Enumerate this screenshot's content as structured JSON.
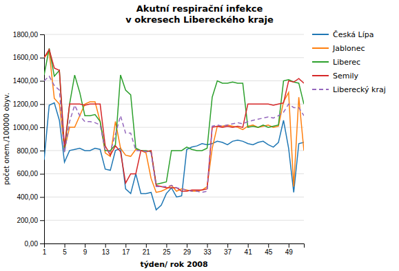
{
  "chart_data": {
    "type": "line",
    "title": "Akutní respirační infekce\nv okresech Libereckého kraje",
    "xlabel": "týden/ rok 2008",
    "ylabel": "počet onem./100000 obyv.",
    "x": [
      1,
      2,
      3,
      4,
      5,
      6,
      7,
      8,
      9,
      10,
      11,
      12,
      13,
      14,
      15,
      16,
      17,
      18,
      19,
      20,
      21,
      22,
      23,
      24,
      25,
      26,
      27,
      28,
      29,
      30,
      31,
      32,
      33,
      34,
      35,
      36,
      37,
      38,
      39,
      40,
      41,
      42,
      43,
      44,
      45,
      46,
      47,
      48,
      49,
      50,
      51,
      52
    ],
    "xlim": [
      1,
      52
    ],
    "xticks": [
      1,
      5,
      9,
      13,
      17,
      21,
      25,
      29,
      33,
      37,
      41,
      45,
      49
    ],
    "ylim": [
      0,
      1800
    ],
    "yticks": [
      {
        "value": 0,
        "label": "0,00"
      },
      {
        "value": 200,
        "label": "200,00"
      },
      {
        "value": 400,
        "label": "400,00"
      },
      {
        "value": 600,
        "label": "600,00"
      },
      {
        "value": 800,
        "label": "800,00"
      },
      {
        "value": 1000,
        "label": "1000,00"
      },
      {
        "value": 1200,
        "label": "1200,00"
      },
      {
        "value": 1400,
        "label": "1400,00"
      },
      {
        "value": 1600,
        "label": "1600,00"
      },
      {
        "value": 1800,
        "label": "1800,00"
      }
    ],
    "grid": true,
    "legend": "right",
    "series": [
      {
        "name": "Česká Lípa",
        "line_style": "solid",
        "values": [
          720,
          1190,
          1210,
          1060,
          700,
          800,
          810,
          820,
          800,
          800,
          820,
          810,
          640,
          630,
          800,
          820,
          470,
          430,
          600,
          430,
          430,
          440,
          290,
          330,
          430,
          480,
          400,
          410,
          810,
          830,
          840,
          860,
          850,
          860,
          880,
          870,
          850,
          880,
          890,
          880,
          860,
          850,
          870,
          880,
          850,
          830,
          870,
          1060,
          820,
          440,
          860,
          870
        ]
      },
      {
        "name": "Jablonec",
        "line_style": "solid",
        "values": [
          1600,
          1650,
          1250,
          1200,
          810,
          1000,
          1000,
          1100,
          1200,
          1220,
          1220,
          1050,
          780,
          750,
          1050,
          820,
          760,
          750,
          810,
          800,
          780,
          560,
          440,
          450,
          470,
          500,
          450,
          470,
          460,
          450,
          450,
          460,
          490,
          820,
          1010,
          1010,
          1020,
          1010,
          1000,
          980,
          1010,
          1020,
          1000,
          1010,
          1020,
          1000,
          1010,
          1220,
          1300,
          490,
          1260,
          800
        ]
      },
      {
        "name": "Liberec",
        "line_style": "solid",
        "values": [
          1450,
          1680,
          1440,
          1490,
          790,
          1200,
          1450,
          1300,
          1100,
          1100,
          1110,
          1050,
          800,
          800,
          850,
          1450,
          1320,
          1280,
          820,
          800,
          800,
          790,
          510,
          520,
          530,
          800,
          800,
          800,
          830,
          810,
          800,
          800,
          820,
          1260,
          1400,
          1380,
          1380,
          1390,
          1380,
          1380,
          1000,
          1010,
          1000,
          1020,
          1000,
          1010,
          1020,
          1400,
          1410,
          1390,
          1380,
          1200
        ]
      },
      {
        "name": "Semily",
        "line_style": "solid",
        "values": [
          1600,
          1670,
          1510,
          1490,
          830,
          1200,
          1200,
          1200,
          1190,
          1200,
          1200,
          1200,
          840,
          760,
          840,
          790,
          520,
          600,
          600,
          800,
          790,
          800,
          500,
          490,
          480,
          480,
          480,
          450,
          450,
          460,
          460,
          460,
          470,
          1000,
          1010,
          1000,
          1010,
          1000,
          1010,
          1000,
          1200,
          1200,
          1200,
          1200,
          1200,
          1190,
          1200,
          1210,
          1400,
          1390,
          1420,
          1380
        ]
      },
      {
        "name": "Liberecký kraj",
        "line_style": "dashed",
        "values": [
          1400,
          1440,
          1360,
          1320,
          780,
          1050,
          1190,
          1100,
          1050,
          1050,
          1040,
          1020,
          800,
          790,
          940,
          1100,
          950,
          950,
          800,
          800,
          790,
          780,
          490,
          490,
          490,
          500,
          480,
          470,
          460,
          450,
          450,
          440,
          450,
          1010,
          1020,
          1010,
          1020,
          1030,
          1040,
          1030,
          1050,
          1060,
          1070,
          1080,
          1090,
          1080,
          1100,
          1130,
          1200,
          1170,
          1170,
          1100
        ]
      }
    ]
  }
}
